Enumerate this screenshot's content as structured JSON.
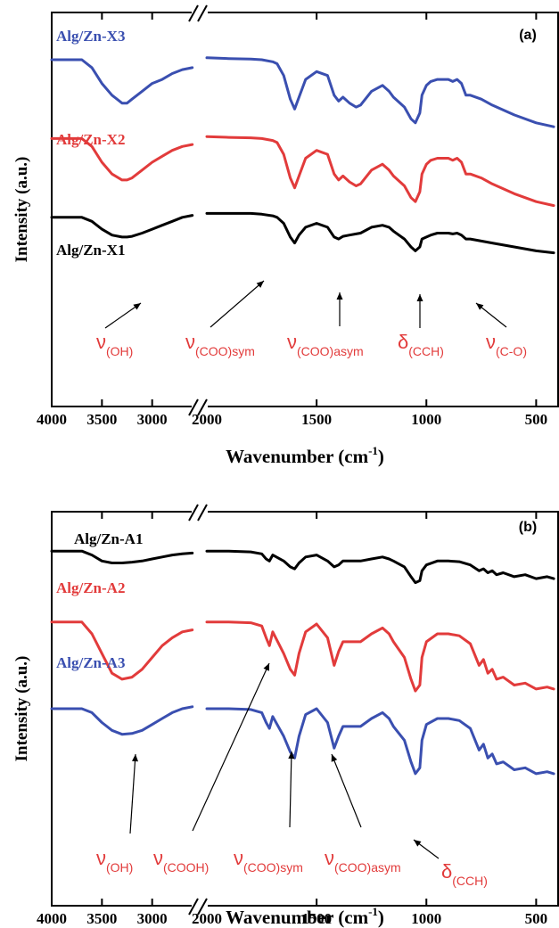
{
  "colors": {
    "black": "#000000",
    "red": "#e23b3b",
    "blue": "#3a4fb0",
    "annotation": "#e23b3b"
  },
  "chart_data": [
    {
      "type": "line",
      "panel": "(a)",
      "xlabel": "Wavenumber (cm",
      "xlabel_sup": "-1",
      "xlabel_close": ")",
      "ylabel": "Intensity (a.u.)",
      "axis_break": true,
      "xlim_left": [
        4000,
        2000
      ],
      "xlim_right": [
        2000,
        400
      ],
      "x_ticks": [
        "4000",
        "3500",
        "3000",
        "2000",
        "1500",
        "1000",
        "500"
      ],
      "series": [
        {
          "name": "Alg/Zn-X3",
          "color": "#3a4fb0",
          "left": {
            "x": [
              4000,
              3800,
              3700,
              3600,
              3500,
              3400,
              3300,
              3250,
              3200,
              3100,
              3000,
              2900,
              2800,
              2700,
              2600
            ],
            "y": [
              0.88,
              0.88,
              0.88,
              0.86,
              0.82,
              0.79,
              0.77,
              0.77,
              0.78,
              0.8,
              0.82,
              0.83,
              0.845,
              0.855,
              0.86
            ]
          },
          "right": {
            "x": [
              2000,
              1900,
              1800,
              1750,
              1700,
              1680,
              1650,
              1620,
              1600,
              1580,
              1550,
              1500,
              1450,
              1420,
              1400,
              1380,
              1350,
              1320,
              1300,
              1250,
              1200,
              1170,
              1150,
              1100,
              1070,
              1050,
              1030,
              1020,
              1000,
              980,
              950,
              900,
              880,
              860,
              840,
              820,
              800,
              750,
              700,
              600,
              500,
              420
            ],
            "y": [
              0.885,
              0.883,
              0.882,
              0.88,
              0.875,
              0.87,
              0.84,
              0.78,
              0.755,
              0.785,
              0.83,
              0.85,
              0.84,
              0.79,
              0.775,
              0.785,
              0.77,
              0.76,
              0.765,
              0.8,
              0.815,
              0.8,
              0.785,
              0.76,
              0.73,
              0.72,
              0.745,
              0.79,
              0.815,
              0.825,
              0.83,
              0.83,
              0.825,
              0.83,
              0.82,
              0.79,
              0.79,
              0.78,
              0.765,
              0.74,
              0.72,
              0.71
            ]
          }
        },
        {
          "name": "Alg/Zn-X2",
          "color": "#e23b3b",
          "left": {
            "x": [
              4000,
              3800,
              3700,
              3600,
              3500,
              3400,
              3300,
              3250,
              3200,
              3100,
              3000,
              2900,
              2800,
              2700,
              2600
            ],
            "y": [
              0.68,
              0.68,
              0.68,
              0.66,
              0.62,
              0.59,
              0.575,
              0.575,
              0.58,
              0.6,
              0.62,
              0.635,
              0.65,
              0.66,
              0.665
            ]
          },
          "right": {
            "x": [
              2000,
              1900,
              1800,
              1750,
              1700,
              1680,
              1650,
              1620,
              1600,
              1580,
              1550,
              1500,
              1450,
              1420,
              1400,
              1380,
              1350,
              1320,
              1300,
              1250,
              1200,
              1170,
              1150,
              1100,
              1070,
              1050,
              1030,
              1020,
              1000,
              980,
              950,
              900,
              880,
              860,
              840,
              820,
              800,
              750,
              700,
              600,
              500,
              420
            ],
            "y": [
              0.685,
              0.683,
              0.682,
              0.68,
              0.675,
              0.67,
              0.64,
              0.58,
              0.555,
              0.585,
              0.63,
              0.65,
              0.64,
              0.59,
              0.575,
              0.585,
              0.57,
              0.56,
              0.565,
              0.6,
              0.615,
              0.6,
              0.585,
              0.56,
              0.53,
              0.52,
              0.545,
              0.59,
              0.615,
              0.625,
              0.63,
              0.63,
              0.625,
              0.63,
              0.62,
              0.59,
              0.59,
              0.58,
              0.565,
              0.54,
              0.52,
              0.51
            ]
          }
        },
        {
          "name": "Alg/Zn-X1",
          "color": "#000000",
          "left": {
            "x": [
              4000,
              3800,
              3700,
              3600,
              3500,
              3400,
              3300,
              3250,
              3200,
              3100,
              3000,
              2900,
              2800,
              2700,
              2600
            ],
            "y": [
              0.48,
              0.48,
              0.48,
              0.47,
              0.45,
              0.435,
              0.43,
              0.43,
              0.432,
              0.44,
              0.45,
              0.46,
              0.47,
              0.48,
              0.485
            ]
          },
          "right": {
            "x": [
              2000,
              1900,
              1800,
              1750,
              1700,
              1680,
              1650,
              1620,
              1600,
              1580,
              1550,
              1500,
              1450,
              1420,
              1400,
              1380,
              1350,
              1320,
              1300,
              1250,
              1200,
              1170,
              1150,
              1100,
              1070,
              1050,
              1030,
              1020,
              1000,
              980,
              950,
              900,
              880,
              860,
              840,
              820,
              800,
              750,
              700,
              600,
              500,
              420
            ],
            "y": [
              0.49,
              0.49,
              0.49,
              0.488,
              0.484,
              0.48,
              0.465,
              0.43,
              0.415,
              0.435,
              0.455,
              0.465,
              0.455,
              0.43,
              0.425,
              0.432,
              0.435,
              0.438,
              0.44,
              0.455,
              0.46,
              0.455,
              0.445,
              0.425,
              0.405,
              0.395,
              0.405,
              0.425,
              0.43,
              0.435,
              0.44,
              0.44,
              0.438,
              0.44,
              0.435,
              0.425,
              0.425,
              0.42,
              0.415,
              0.405,
              0.395,
              0.39
            ]
          }
        }
      ],
      "series_labels": [
        "Alg/Zn-X3",
        "Alg/Zn-X2",
        "Alg/Zn-X1"
      ],
      "annotations": [
        {
          "main": "ν",
          "sub": "(OH)"
        },
        {
          "main": "ν",
          "sub": "(COO)sym"
        },
        {
          "main": "ν",
          "sub": "(COO)asym"
        },
        {
          "main": "δ",
          "sub": "(CCH)"
        },
        {
          "main": "ν",
          "sub": "(C-O)"
        }
      ]
    },
    {
      "type": "line",
      "panel": "(b)",
      "xlabel": "Wavenumber (cm",
      "xlabel_sup": "-1",
      "xlabel_close": ")",
      "ylabel": "Intensity (a.u.)",
      "axis_break": true,
      "xlim_left": [
        4000,
        2000
      ],
      "xlim_right": [
        2000,
        400
      ],
      "x_ticks": [
        "4000",
        "3500",
        "3000",
        "2000",
        "1500",
        "1000",
        "500"
      ],
      "series": [
        {
          "name": "Alg/Zn-A1",
          "color": "#000000",
          "left": {
            "x": [
              4000,
              3800,
              3700,
              3600,
              3500,
              3400,
              3300,
              3200,
              3100,
              3000,
              2900,
              2800,
              2700,
              2600
            ],
            "y": [
              0.9,
              0.9,
              0.9,
              0.89,
              0.875,
              0.87,
              0.87,
              0.872,
              0.875,
              0.88,
              0.885,
              0.89,
              0.893,
              0.895
            ]
          },
          "right": {
            "x": [
              2000,
              1900,
              1800,
              1750,
              1730,
              1715,
              1700,
              1650,
              1620,
              1600,
              1580,
              1550,
              1500,
              1450,
              1420,
              1400,
              1380,
              1300,
              1250,
              1200,
              1170,
              1150,
              1100,
              1070,
              1050,
              1030,
              1020,
              1000,
              950,
              900,
              850,
              800,
              760,
              740,
              720,
              700,
              680,
              650,
              600,
              550,
              500,
              450,
              420
            ],
            "y": [
              0.9,
              0.9,
              0.898,
              0.893,
              0.88,
              0.875,
              0.89,
              0.875,
              0.86,
              0.855,
              0.87,
              0.885,
              0.89,
              0.875,
              0.86,
              0.865,
              0.875,
              0.875,
              0.88,
              0.885,
              0.88,
              0.875,
              0.86,
              0.835,
              0.82,
              0.825,
              0.85,
              0.865,
              0.875,
              0.875,
              0.873,
              0.865,
              0.85,
              0.855,
              0.845,
              0.85,
              0.84,
              0.845,
              0.835,
              0.84,
              0.83,
              0.835,
              0.83
            ]
          }
        },
        {
          "name": "Alg/Zn-A2",
          "color": "#e23b3b",
          "left": {
            "x": [
              4000,
              3800,
              3700,
              3600,
              3500,
              3400,
              3300,
              3200,
              3100,
              3000,
              2900,
              2800,
              2700,
              2600
            ],
            "y": [
              0.72,
              0.72,
              0.72,
              0.69,
              0.64,
              0.59,
              0.575,
              0.58,
              0.6,
              0.63,
              0.66,
              0.68,
              0.695,
              0.7
            ]
          },
          "right": {
            "x": [
              2000,
              1900,
              1800,
              1750,
              1730,
              1715,
              1700,
              1650,
              1620,
              1600,
              1580,
              1550,
              1500,
              1450,
              1420,
              1400,
              1380,
              1300,
              1250,
              1200,
              1170,
              1150,
              1100,
              1070,
              1050,
              1030,
              1020,
              1000,
              950,
              900,
              850,
              800,
              760,
              740,
              720,
              700,
              680,
              650,
              600,
              550,
              500,
              450,
              420
            ],
            "y": [
              0.72,
              0.72,
              0.718,
              0.71,
              0.68,
              0.66,
              0.695,
              0.64,
              0.6,
              0.585,
              0.64,
              0.695,
              0.715,
              0.68,
              0.61,
              0.645,
              0.67,
              0.67,
              0.69,
              0.705,
              0.69,
              0.67,
              0.63,
              0.575,
              0.545,
              0.56,
              0.63,
              0.67,
              0.69,
              0.69,
              0.685,
              0.665,
              0.61,
              0.625,
              0.59,
              0.6,
              0.575,
              0.58,
              0.56,
              0.565,
              0.55,
              0.555,
              0.55
            ]
          }
        },
        {
          "name": "Alg/Zn-A3",
          "color": "#3a4fb0",
          "left": {
            "x": [
              4000,
              3800,
              3700,
              3600,
              3500,
              3400,
              3300,
              3200,
              3100,
              3000,
              2900,
              2800,
              2700,
              2600
            ],
            "y": [
              0.5,
              0.5,
              0.5,
              0.49,
              0.465,
              0.445,
              0.435,
              0.437,
              0.445,
              0.46,
              0.475,
              0.49,
              0.5,
              0.505
            ]
          },
          "right": {
            "x": [
              2000,
              1900,
              1800,
              1750,
              1730,
              1715,
              1700,
              1650,
              1620,
              1600,
              1580,
              1550,
              1500,
              1450,
              1420,
              1400,
              1380,
              1300,
              1250,
              1200,
              1170,
              1150,
              1100,
              1070,
              1050,
              1030,
              1020,
              1000,
              950,
              900,
              850,
              800,
              760,
              740,
              720,
              700,
              680,
              650,
              600,
              550,
              500,
              450,
              420
            ],
            "y": [
              0.5,
              0.5,
              0.498,
              0.49,
              0.465,
              0.45,
              0.48,
              0.43,
              0.39,
              0.375,
              0.43,
              0.485,
              0.5,
              0.465,
              0.4,
              0.43,
              0.455,
              0.455,
              0.475,
              0.49,
              0.475,
              0.455,
              0.42,
              0.365,
              0.335,
              0.35,
              0.42,
              0.46,
              0.475,
              0.475,
              0.47,
              0.45,
              0.395,
              0.41,
              0.375,
              0.385,
              0.36,
              0.365,
              0.345,
              0.35,
              0.335,
              0.34,
              0.335
            ]
          }
        }
      ],
      "series_labels": [
        "Alg/Zn-A1",
        "Alg/Zn-A2",
        "Alg/Zn-A3"
      ],
      "annotations": [
        {
          "main": "ν",
          "sub": "(OH)"
        },
        {
          "main": "ν",
          "sub": "(COOH)"
        },
        {
          "main": "ν",
          "sub": "(COO)sym"
        },
        {
          "main": "ν",
          "sub": "(COO)asym"
        },
        {
          "main": "δ",
          "sub": "(CCH)"
        }
      ]
    }
  ]
}
